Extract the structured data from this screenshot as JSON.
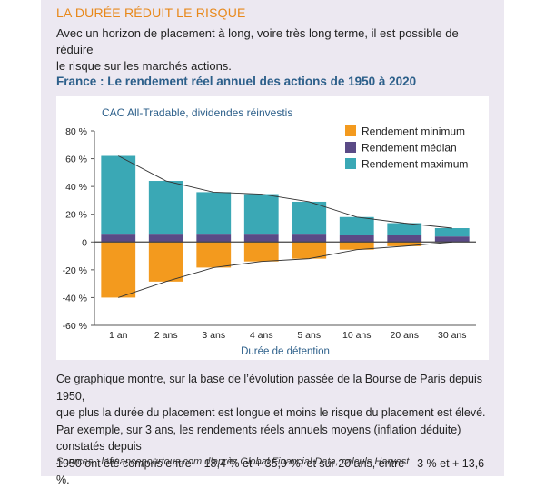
{
  "section_title": "LA DURÉE RÉDUIT LE RISQUE",
  "intro_line1": "Avec un horizon de placement à long, voire très long terme, il est possible de réduire",
  "intro_line2": "le risque sur les marchés actions.",
  "chart_title": "France : Le rendement réel annuel des actions de 1950 à 2020",
  "caption_line1": "Ce graphique montre, sur la base de l’évolution passée de la Bourse de Paris depuis 1950,",
  "caption_line2": "que plus la durée du placement est longue et moins le risque du placement est élevé.",
  "caption_line3": "Par exemple, sur 3 ans, les rendements réels annuels moyens (inflation déduite) constatés depuis",
  "caption_line4": "1950 ont été compris entre – 18,4 % et + 35,9 %, et sur 20 ans, entre – 3 % et + 13,6 %.",
  "source": "Sources : lafinancepourtous.com d’après Global Financial Data, calculs Harvest",
  "colors": {
    "title_orange": "#e8881a",
    "chart_title_blue": "#2c5f8a",
    "minimum": "#f39a1e",
    "median": "#5a4a86",
    "maximum": "#3aa8b5",
    "panel_bg": "#ece8f1"
  },
  "chart_data": {
    "type": "bar",
    "subtitle": "CAC All-Tradable, dividendes réinvestis",
    "xlabel": "Durée de détention",
    "ylabel": "",
    "ylim": [
      -60,
      80
    ],
    "yticks": [
      80,
      60,
      40,
      20,
      0,
      -20,
      -40,
      -60
    ],
    "ytick_labels": [
      "80 %",
      "60 %",
      "40 %",
      "20 %",
      "0",
      "-20 %",
      "-40 %",
      "-60 %"
    ],
    "categories": [
      "1 an",
      "2 ans",
      "3 ans",
      "4 ans",
      "5 ans",
      "10 ans",
      "20 ans",
      "30 ans"
    ],
    "series": [
      {
        "name": "Rendement minimum",
        "values": [
          -40,
          -28.5,
          -18.4,
          -14,
          -12,
          -5.5,
          -3,
          0
        ]
      },
      {
        "name": "Rendement médian",
        "values": [
          6,
          6,
          6,
          6,
          6,
          5,
          5,
          4
        ]
      },
      {
        "name": "Rendement maximum",
        "values": [
          62,
          44,
          35.9,
          34.5,
          29,
          18,
          13.6,
          10
        ]
      }
    ],
    "grid": false,
    "legend": "top-right"
  }
}
